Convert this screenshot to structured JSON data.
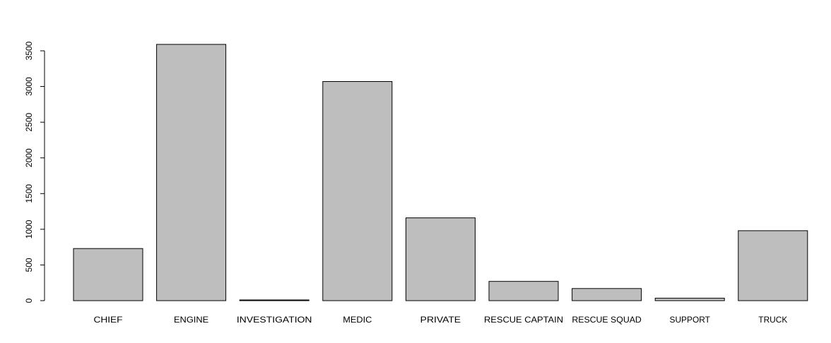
{
  "chart_data": {
    "type": "bar",
    "categories": [
      "CHIEF",
      "ENGINE",
      "INVESTIGATION",
      "MEDIC",
      "PRIVATE",
      "RESCUE CAPTAIN",
      "RESCUE SQUAD",
      "SUPPORT",
      "TRUCK"
    ],
    "values": [
      730,
      3590,
      10,
      3070,
      1160,
      270,
      170,
      35,
      980
    ],
    "title": "",
    "xlabel": "",
    "ylabel": "",
    "ylim": [
      0,
      3500
    ],
    "yticks": [
      0,
      500,
      1000,
      1500,
      2000,
      2500,
      3000,
      3500
    ],
    "grid": false,
    "colors": {
      "bar_fill": "#bebebe",
      "bar_stroke": "#000000"
    }
  }
}
